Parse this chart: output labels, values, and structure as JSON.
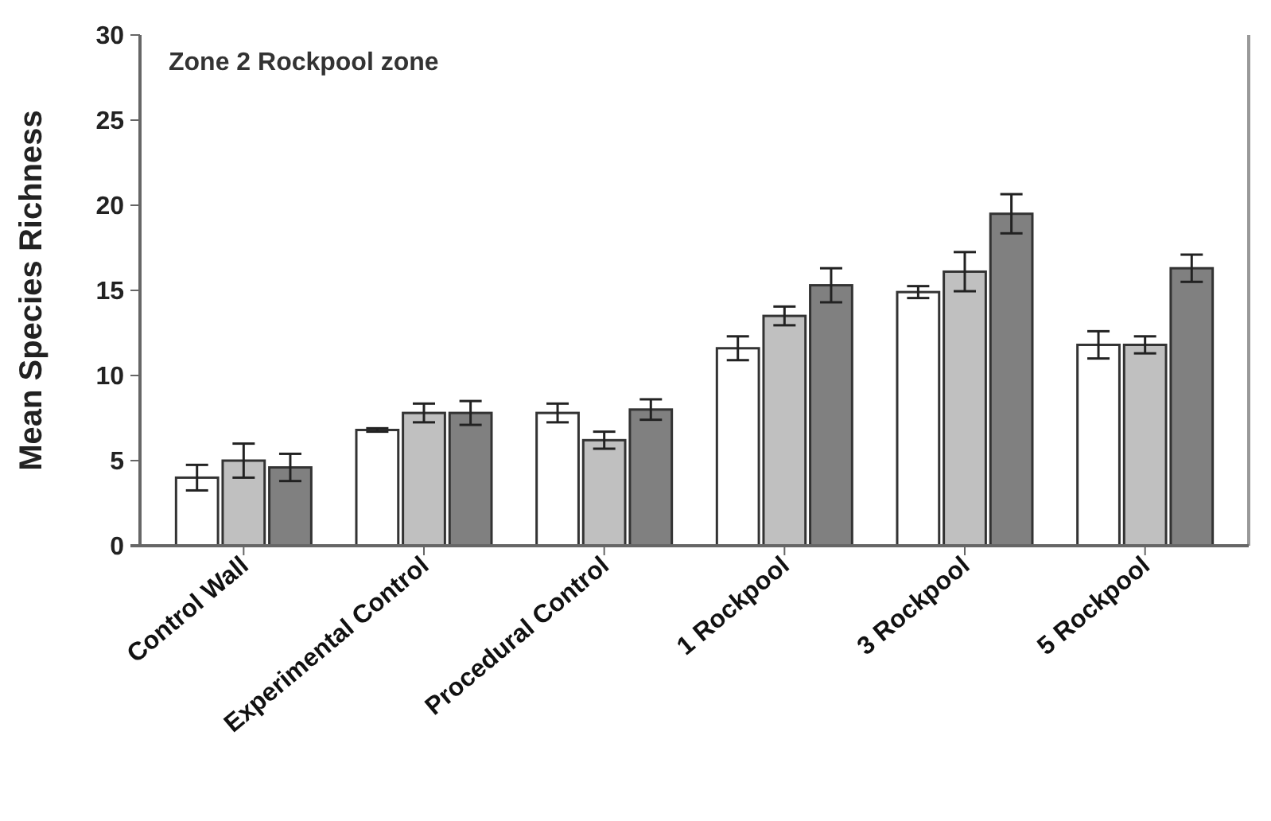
{
  "chart_data": {
    "type": "bar",
    "title": "Zone 2  Rockpool zone",
    "ylabel": "Mean Species Richness",
    "categories": [
      "Control Wall",
      "Experimental Control",
      "Procedural Control",
      "1 Rockpool",
      "3 Rockpool",
      "5 Rockpool"
    ],
    "series": [
      {
        "color": "#ffffff",
        "values": [
          4.0,
          6.8,
          7.8,
          11.6,
          14.9,
          11.8
        ],
        "errors": [
          0.75,
          0.1,
          0.55,
          0.7,
          0.35,
          0.8
        ]
      },
      {
        "color": "#c0c0c0",
        "values": [
          5.0,
          7.8,
          6.2,
          13.5,
          16.1,
          11.8
        ],
        "errors": [
          1.0,
          0.55,
          0.5,
          0.55,
          1.15,
          0.5
        ]
      },
      {
        "color": "#808080",
        "values": [
          4.6,
          7.8,
          8.0,
          15.3,
          19.5,
          16.3
        ],
        "errors": [
          0.8,
          0.7,
          0.6,
          1.0,
          1.15,
          0.8
        ]
      }
    ],
    "ylim": [
      0,
      30
    ],
    "yticks": [
      0,
      5,
      10,
      15,
      20,
      25,
      30
    ],
    "grid": false
  }
}
